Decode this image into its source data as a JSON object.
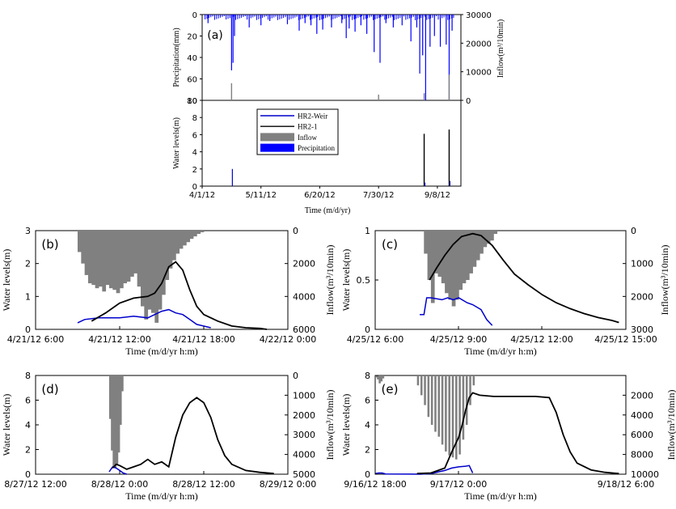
{
  "figure": {
    "panels": [
      "(a)",
      "(b)",
      "(c)",
      "(d)",
      "(e)"
    ]
  },
  "legend": {
    "entries": [
      {
        "label": "HR2-Weir",
        "kind": "line",
        "color": "#0000cc"
      },
      {
        "label": "HR2-1",
        "kind": "line",
        "color": "#000000"
      },
      {
        "label": "Inflow",
        "kind": "fill",
        "color": "#808080"
      },
      {
        "label": "Precipitation",
        "kind": "fill",
        "color": "#0000ff"
      }
    ]
  },
  "colors": {
    "weir": "#0000cc",
    "well": "#000000",
    "inflow": "#808080",
    "precip": "#0000ff"
  },
  "chart_data": [
    {
      "id": "a",
      "type": "bar",
      "label": "(a)",
      "xlabel": "Time (m/d/yr)",
      "x_ticks": [
        "4/1/12",
        "5/11/12",
        "6/20/12",
        "7/30/12",
        "9/8/12"
      ],
      "x_range_days": [
        0,
        176
      ],
      "top": {
        "ylabel": "Precipitation(mm)",
        "ylim": [
          0,
          80
        ],
        "y_ticks": [
          "0",
          "20",
          "40",
          "60",
          "80"
        ],
        "y2label": "Inflow(m³/10min)",
        "y2lim": [
          0,
          30000
        ],
        "y2_ticks": [
          "0",
          "10000",
          "20000",
          "30000"
        ],
        "precipitation_spikes": [
          {
            "day": 4,
            "mm": 8
          },
          {
            "day": 20,
            "mm": 52
          },
          {
            "day": 21,
            "mm": 45
          },
          {
            "day": 22,
            "mm": 20
          },
          {
            "day": 32,
            "mm": 12
          },
          {
            "day": 40,
            "mm": 10
          },
          {
            "day": 46,
            "mm": 6
          },
          {
            "day": 58,
            "mm": 9
          },
          {
            "day": 66,
            "mm": 15
          },
          {
            "day": 70,
            "mm": 8
          },
          {
            "day": 74,
            "mm": 10
          },
          {
            "day": 78,
            "mm": 18
          },
          {
            "day": 82,
            "mm": 14
          },
          {
            "day": 88,
            "mm": 12
          },
          {
            "day": 95,
            "mm": 8
          },
          {
            "day": 98,
            "mm": 22
          },
          {
            "day": 100,
            "mm": 13
          },
          {
            "day": 104,
            "mm": 16
          },
          {
            "day": 108,
            "mm": 10
          },
          {
            "day": 112,
            "mm": 18
          },
          {
            "day": 117,
            "mm": 35
          },
          {
            "day": 121,
            "mm": 45
          },
          {
            "day": 125,
            "mm": 8
          },
          {
            "day": 130,
            "mm": 12
          },
          {
            "day": 136,
            "mm": 10
          },
          {
            "day": 142,
            "mm": 25
          },
          {
            "day": 146,
            "mm": 12
          },
          {
            "day": 148,
            "mm": 55
          },
          {
            "day": 150,
            "mm": 38
          },
          {
            "day": 152,
            "mm": 80
          },
          {
            "day": 155,
            "mm": 30
          },
          {
            "day": 158,
            "mm": 20
          },
          {
            "day": 162,
            "mm": 30
          },
          {
            "day": 166,
            "mm": 28
          },
          {
            "day": 168,
            "mm": 80
          },
          {
            "day": 170,
            "mm": 15
          }
        ],
        "inflow_spikes": [
          {
            "day": 20,
            "value": 6000
          },
          {
            "day": 120,
            "value": 2000
          },
          {
            "day": 151,
            "value": 2500
          },
          {
            "day": 168,
            "value": 9000
          }
        ]
      },
      "bottom": {
        "ylabel": "Water levels(m)",
        "ylim": [
          0,
          10
        ],
        "y_ticks": [
          "0",
          "2",
          "4",
          "6",
          "8",
          "10"
        ],
        "hr2_1_peaks": [
          {
            "day": 151,
            "m": 6.1
          },
          {
            "day": 168,
            "m": 6.6
          }
        ],
        "hr2_weir_peaks": [
          {
            "day": 20,
            "m": 2.0
          },
          {
            "day": 151,
            "m": 0.4
          },
          {
            "day": 168,
            "m": 0.6
          }
        ]
      }
    },
    {
      "id": "b",
      "type": "area",
      "label": "(b)",
      "xlabel": "Time (m/d/yr h:m)",
      "ylabel": "Water levels(m)",
      "y2label": "Inflow(m³/10min)",
      "x_ticks": [
        "4/21/12 6:00",
        "4/21/12 12:00",
        "4/21/12 18:00",
        "4/22/12 0:00"
      ],
      "x_range_hours": [
        0,
        18
      ],
      "ylim": [
        0,
        3
      ],
      "y_ticks": [
        "0",
        "1",
        "2",
        "3"
      ],
      "y2lim": [
        0,
        6000
      ],
      "y2_ticks": [
        "0",
        "2000",
        "4000",
        "6000"
      ],
      "inflow": {
        "h": [
          3.0,
          3.25,
          3.5,
          3.75,
          4.0,
          4.25,
          4.5,
          4.75,
          5.0,
          5.25,
          5.5,
          5.75,
          6.0,
          6.25,
          6.5,
          6.75,
          7.0,
          7.25,
          7.5,
          7.75,
          8.0,
          8.25,
          8.5,
          8.75,
          9.0,
          9.25,
          9.5,
          9.75,
          10.0,
          10.25,
          10.5,
          10.75,
          11.0,
          11.25,
          11.5,
          11.75
        ],
        "v": [
          1300,
          2000,
          2700,
          3200,
          3300,
          3500,
          3400,
          3700,
          3300,
          3500,
          3600,
          3800,
          3500,
          3200,
          3100,
          2800,
          2600,
          3400,
          4600,
          5400,
          4800,
          5000,
          5600,
          4800,
          3900,
          3000,
          2300,
          1800,
          1400,
          1100,
          900,
          700,
          500,
          350,
          200,
          100
        ]
      },
      "hr2_1": {
        "h": [
          4.0,
          5.0,
          6.0,
          7.0,
          8.0,
          8.5,
          9.0,
          9.5,
          10.0,
          10.5,
          11.0,
          11.5,
          12.0,
          13.0,
          14.0,
          15.0,
          16.0,
          16.5
        ],
        "v": [
          0.25,
          0.5,
          0.8,
          0.95,
          1.0,
          1.1,
          1.4,
          1.9,
          2.05,
          1.8,
          1.2,
          0.7,
          0.45,
          0.25,
          0.1,
          0.05,
          0.03,
          0.0
        ]
      },
      "hr2_weir": {
        "h": [
          3.0,
          3.5,
          4.5,
          6.0,
          7.0,
          8.0,
          9.0,
          9.5,
          10.0,
          10.5,
          11.0,
          11.5,
          12.5
        ],
        "v": [
          0.2,
          0.3,
          0.35,
          0.35,
          0.4,
          0.35,
          0.55,
          0.6,
          0.5,
          0.45,
          0.3,
          0.15,
          0.05
        ]
      }
    },
    {
      "id": "c",
      "type": "area",
      "label": "(c)",
      "xlabel": "Time (m/d/yr h:m)",
      "ylabel": "Water levels(m)",
      "y2label": "Inflow(m³/10min)",
      "x_ticks": [
        "4/25/12 6:00",
        "4/25/12 9:00",
        "4/25/12 12:00",
        "4/25/12 15:00"
      ],
      "x_range_hours": [
        0,
        9
      ],
      "ylim": [
        0,
        1
      ],
      "y_ticks": [
        "0",
        "0.5",
        "1"
      ],
      "y2lim": [
        0,
        3000
      ],
      "y2_ticks": [
        "0",
        "1000",
        "2000",
        "3000"
      ],
      "inflow": {
        "h": [
          1.75,
          1.875,
          2.0,
          2.125,
          2.25,
          2.375,
          2.5,
          2.625,
          2.75,
          2.875,
          3.0,
          3.125,
          3.25,
          3.375,
          3.5,
          3.625,
          3.75,
          3.875,
          4.0,
          4.125,
          4.25
        ],
        "v": [
          700,
          1500,
          2200,
          1300,
          1400,
          1600,
          1900,
          2100,
          2300,
          2100,
          1800,
          1600,
          1500,
          1300,
          1100,
          900,
          700,
          500,
          400,
          300,
          100
        ]
      },
      "hr2_1": {
        "h": [
          1.95,
          2.2,
          2.5,
          2.8,
          3.1,
          3.5,
          3.8,
          4.2,
          4.6,
          5.0,
          5.5,
          6.0,
          6.5,
          7.0,
          7.5,
          8.0,
          8.5,
          8.75
        ],
        "v": [
          0.5,
          0.62,
          0.75,
          0.86,
          0.94,
          0.97,
          0.95,
          0.85,
          0.7,
          0.56,
          0.45,
          0.35,
          0.27,
          0.21,
          0.16,
          0.12,
          0.09,
          0.07
        ]
      },
      "hr2_weir": {
        "h": [
          1.6,
          1.75,
          1.85,
          2.0,
          2.4,
          2.6,
          2.8,
          3.0,
          3.3,
          3.5,
          3.8,
          4.0,
          4.2
        ],
        "v": [
          0.15,
          0.15,
          0.32,
          0.32,
          0.3,
          0.32,
          0.3,
          0.32,
          0.27,
          0.25,
          0.2,
          0.1,
          0.04
        ]
      }
    },
    {
      "id": "d",
      "type": "area",
      "label": "(d)",
      "xlabel": "Time (m/d/yr h:m)",
      "ylabel": "Water levels(m)",
      "y2label": "Inflow(m³/10min)",
      "x_ticks": [
        "8/27/12 12:00",
        "8/28/12 0:00",
        "8/28/12 12:00",
        "8/29/12 0:00"
      ],
      "x_range_hours": [
        0,
        36
      ],
      "ylim": [
        0,
        8
      ],
      "y_ticks": [
        "0",
        "2",
        "4",
        "6",
        "8"
      ],
      "y2lim": [
        0,
        5000
      ],
      "y2_ticks": [
        "0",
        "1000",
        "2000",
        "3000",
        "4000",
        "5000"
      ],
      "inflow": {
        "h": [
          10.5,
          10.75,
          11.0,
          11.25,
          11.5,
          11.75,
          12.0,
          12.25
        ],
        "v": [
          2200,
          3800,
          4600,
          4700,
          4500,
          3900,
          2500,
          800
        ]
      },
      "hr2_1": {
        "h": [
          11.0,
          11.5,
          12.0,
          13.0,
          14.0,
          15.0,
          16.0,
          17.0,
          18.0,
          19.0,
          20.0,
          21.0,
          22.0,
          23.0,
          24.0,
          25.0,
          26.0,
          27.0,
          28.0,
          30.0,
          32.0,
          34.0
        ],
        "v": [
          0.5,
          0.8,
          0.7,
          0.4,
          0.6,
          0.8,
          1.2,
          0.8,
          1.0,
          0.6,
          3.0,
          4.8,
          5.8,
          6.2,
          5.8,
          4.6,
          2.8,
          1.5,
          0.8,
          0.3,
          0.15,
          0.05
        ]
      },
      "hr2_weir": {
        "h": [
          10.5,
          11.0,
          11.5,
          12.0,
          12.5,
          13.0
        ],
        "v": [
          0.2,
          0.6,
          0.5,
          0.3,
          0.1,
          0.0
        ]
      }
    },
    {
      "id": "e",
      "type": "area",
      "label": "(e)",
      "xlabel": "Time (m/d/yr h:m)",
      "ylabel": "Water levels(m)",
      "y2label": "Inflow(m³/10min)",
      "x_ticks": [
        "9/16/12 18:00",
        "9/17/12 0:00",
        "9/18/12 6:00"
      ],
      "x_range_hours": [
        0,
        36
      ],
      "ylim": [
        0,
        8
      ],
      "y_ticks": [
        "0",
        "2",
        "4",
        "6",
        "8"
      ],
      "y2lim": [
        0,
        10000
      ],
      "y2_ticks": [
        "2000",
        "4000",
        "6000",
        "8000",
        "10000"
      ],
      "inflow": {
        "h": [
          0.0,
          0.25,
          0.5,
          0.75,
          1.0,
          6.0,
          6.5,
          7.0,
          7.5,
          8.0,
          8.5,
          9.0,
          9.5,
          10.0,
          10.5,
          11.0,
          11.5,
          12.0,
          12.5,
          13.0,
          13.5,
          14.0
        ],
        "v": [
          200,
          400,
          800,
          600,
          300,
          1000,
          2000,
          3000,
          4200,
          5000,
          5700,
          6200,
          7000,
          7700,
          8100,
          8300,
          8500,
          8000,
          6500,
          5000,
          3000,
          1000
        ]
      },
      "hr2_1": {
        "h": [
          6.0,
          8.0,
          10.0,
          11.0,
          12.0,
          12.5,
          13.0,
          13.5,
          14.0,
          15.0,
          17.0,
          19.0,
          21.0,
          23.0,
          25.0,
          26.0,
          27.0,
          28.0,
          29.0,
          31.0,
          33.0,
          35.0
        ],
        "v": [
          0.05,
          0.1,
          0.5,
          1.8,
          3.0,
          4.0,
          5.2,
          6.2,
          6.6,
          6.4,
          6.3,
          6.3,
          6.3,
          6.3,
          6.2,
          5.0,
          3.2,
          1.8,
          0.9,
          0.35,
          0.15,
          0.05
        ]
      },
      "hr2_weir": {
        "h": [
          0.0,
          0.5,
          1.0,
          1.5,
          6.5,
          8.0,
          10.0,
          11.0,
          12.0,
          13.0,
          13.5,
          14.0
        ],
        "v": [
          0.05,
          0.1,
          0.1,
          0.02,
          0.0,
          0.05,
          0.3,
          0.5,
          0.6,
          0.65,
          0.7,
          0.1
        ]
      }
    }
  ]
}
